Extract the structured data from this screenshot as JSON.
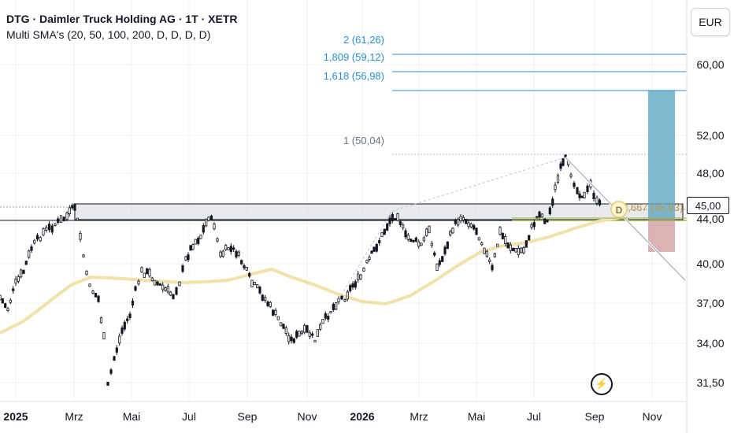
{
  "header": {
    "title": "DTG · Daimler Truck Holding AG · 1T · XETR",
    "indicator": "Multi SMA's (20, 50, 100, 200, D, D, D, D)"
  },
  "currency_button": "EUR",
  "current_price": "45,00",
  "chart_data": {
    "type": "line",
    "y_axis_labels": [
      "60,00",
      "52,00",
      "48,00",
      "44,00",
      "40,00",
      "37,00",
      "34,00",
      "31,50"
    ],
    "x_axis_labels": [
      "2025",
      "Mrz",
      "Mai",
      "Jul",
      "Sep",
      "Nov",
      "2026",
      "Mrz",
      "Mai",
      "Jul",
      "Sep",
      "Nov"
    ],
    "fib_labels": [
      "2 (61,26)",
      "1,809 (59,12)",
      "1,618 (56,98)",
      "1 (50,04)",
      "0,667 (45,93)"
    ],
    "colors": {
      "candles": "#131722",
      "sma": "#f0e2a8",
      "fib": "#2a8fd6",
      "target_box": "#5fa8c4",
      "stop_box": "#c98a8e",
      "zone": "#d7d9de"
    }
  },
  "icons": {
    "bolt": "lightning-icon"
  }
}
